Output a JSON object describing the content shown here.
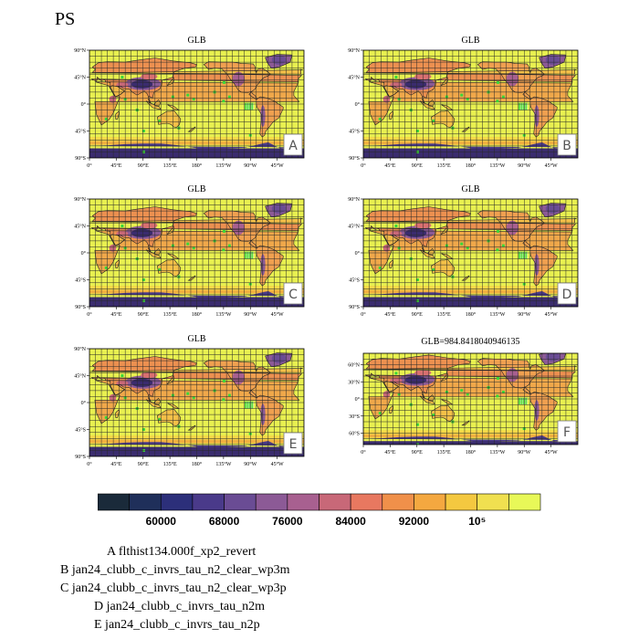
{
  "page_title": "PS",
  "colors": {
    "land_low": "#3a2c6e",
    "ocean": "#e8f050",
    "station": "#3ad83a",
    "coast": "#222222",
    "grid": "#2a2a2a"
  },
  "chart_data": {
    "type": "heatmap",
    "variable": "PS",
    "lat_ticks_std": [
      "90°N",
      "45°N",
      "0°",
      "45°S",
      "90°S"
    ],
    "lat_ticks_f": [
      "60°N",
      "30°N",
      "0°",
      "30°S",
      "60°S"
    ],
    "lon_ticks": [
      "0°",
      "45°E",
      "90°E",
      "135°E",
      "180°",
      "135°W",
      "90°W",
      "45°W"
    ],
    "panels": [
      {
        "label": "A",
        "title": "GLB",
        "case": "flthist134.000f_xp2_revert"
      },
      {
        "label": "B",
        "title": "GLB",
        "case": "jan24_clubb_c_invrs_tau_n2_clear_wp3m"
      },
      {
        "label": "C",
        "title": "GLB",
        "case": "jan24_clubb_c_invrs_tau_n2_clear_wp3p"
      },
      {
        "label": "D",
        "title": "GLB",
        "case": "jan24_clubb_c_invrs_tau_n2m"
      },
      {
        "label": "E",
        "title": "GLB",
        "case": "jan24_clubb_c_invrs_tau_n2p"
      },
      {
        "label": "F",
        "title": "GLB=984.8418040946135",
        "case": ""
      }
    ],
    "colorbar": {
      "colors": [
        "#1a2a3a",
        "#1f2f5a",
        "#2c2f7a",
        "#4a3a8a",
        "#6a4c94",
        "#8c5a96",
        "#a86090",
        "#c86878",
        "#e87860",
        "#f0904a",
        "#f4a840",
        "#f4c840",
        "#f0e050",
        "#e8f858"
      ],
      "tick_labels": [
        "60000",
        "68000",
        "76000",
        "84000",
        "92000",
        "10⁵"
      ]
    }
  },
  "legend_lines": [
    "A  flthist134.000f_xp2_revert",
    "B  jan24_clubb_c_invrs_tau_n2_clear_wp3m",
    "C  jan24_clubb_c_invrs_tau_n2_clear_wp3p",
    "D  jan24_clubb_c_invrs_tau_n2m",
    "E  jan24_clubb_c_invrs_tau_n2p"
  ]
}
